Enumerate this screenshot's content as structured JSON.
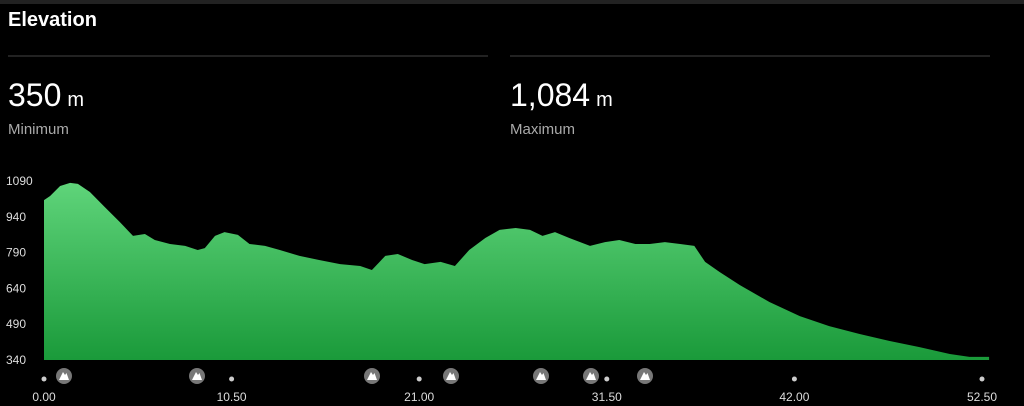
{
  "header": {
    "title": "Elevation"
  },
  "stats": [
    {
      "value": "350",
      "unit": "m",
      "label": "Minimum"
    },
    {
      "value": "1,084",
      "unit": "m",
      "label": "Maximum"
    }
  ],
  "chart_data": {
    "type": "area",
    "x": [
      0,
      0.34,
      0.9,
      1.46,
      1.9,
      2.57,
      3.4,
      4.25,
      4.98,
      5.65,
      6.2,
      7.05,
      7.9,
      8.6,
      9.0,
      9.57,
      10.1,
      10.85,
      11.5,
      12.37,
      13.2,
      14.3,
      15.4,
      16.57,
      17.7,
      18.35,
      19.1,
      19.8,
      20.6,
      21.3,
      22.2,
      23.0,
      23.8,
      24.7,
      25.5,
      26.4,
      27.2,
      27.9,
      28.6,
      29.4,
      30.56,
      31.4,
      32.2,
      33.1,
      33.9,
      34.75,
      35.6,
      36.4,
      37.0,
      37.8,
      38.95,
      40.6,
      42.3,
      43.95,
      45.65,
      47.3,
      49.0,
      50.7,
      51.8,
      52.9
    ],
    "values": [
      1010,
      1027,
      1069,
      1082,
      1078,
      1044,
      981,
      918,
      860,
      868,
      843,
      826,
      818,
      801,
      809,
      860,
      876,
      864,
      826,
      818,
      801,
      776,
      759,
      742,
      734,
      717,
      776,
      784,
      759,
      742,
      751,
      734,
      801,
      851,
      885,
      893,
      885,
      860,
      876,
      851,
      818,
      834,
      843,
      826,
      826,
      834,
      826,
      818,
      751,
      709,
      654,
      583,
      524,
      482,
      449,
      420,
      394,
      365,
      353,
      353
    ],
    "color": "#33b84d",
    "xlim": [
      0,
      53
    ],
    "ylim": [
      340,
      1090
    ],
    "xticks": [
      {
        "value": 0,
        "label": "0.00"
      },
      {
        "value": 10.5,
        "label": "10.50"
      },
      {
        "value": 21,
        "label": "21.00"
      },
      {
        "value": 31.5,
        "label": "31.50"
      },
      {
        "value": 42,
        "label": "42.00"
      },
      {
        "value": 52.5,
        "label": "52.50"
      }
    ],
    "yticks": [
      340,
      490,
      640,
      790,
      940,
      1090
    ]
  }
}
